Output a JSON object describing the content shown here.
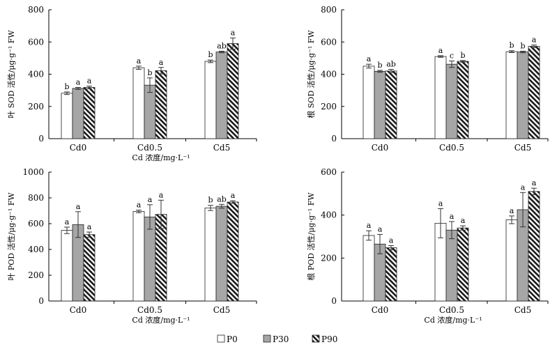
{
  "legend": {
    "items": [
      {
        "label": "P0",
        "pattern": "white"
      },
      {
        "label": "P30",
        "pattern": "gray"
      },
      {
        "label": "P90",
        "pattern": "hatch"
      }
    ]
  },
  "chart_data": [
    {
      "type": "bar",
      "title": "",
      "ylabel": "叶 SOD 活性/μg·g⁻¹ FW",
      "xlabel": "Cd 浓度/mg·L⁻¹",
      "categories": [
        "Cd0",
        "Cd0.5",
        "Cd5"
      ],
      "ylim": [
        0,
        800
      ],
      "yticks": [
        0,
        200,
        400,
        600,
        800
      ],
      "series": [
        {
          "name": "P0",
          "values": [
            282,
            440,
            480
          ],
          "errors": [
            8,
            10,
            8
          ],
          "letters": [
            "b",
            "a",
            "b"
          ]
        },
        {
          "name": "P30",
          "values": [
            312,
            332,
            538
          ],
          "errors": [
            6,
            45,
            5
          ],
          "letters": [
            "a",
            "b",
            "ab"
          ]
        },
        {
          "name": "P90",
          "values": [
            318,
            422,
            590
          ],
          "errors": [
            8,
            20,
            35
          ],
          "letters": [
            "a",
            "a",
            "a"
          ]
        }
      ]
    },
    {
      "type": "bar",
      "title": "",
      "ylabel": "根 SOD 活性/μg·g⁻¹ FW",
      "xlabel": "",
      "categories": [
        "Cd0",
        "Cd0.5",
        "Cd5"
      ],
      "ylim": [
        0,
        800
      ],
      "yticks": [
        0,
        200,
        400,
        600,
        800
      ],
      "series": [
        {
          "name": "P0",
          "values": [
            450,
            510,
            540
          ],
          "errors": [
            12,
            5,
            6
          ],
          "letters": [
            "a",
            "a",
            "b"
          ]
        },
        {
          "name": "P30",
          "values": [
            418,
            462,
            538
          ],
          "errors": [
            6,
            20,
            5
          ],
          "letters": [
            "b",
            "c",
            "b"
          ]
        },
        {
          "name": "P90",
          "values": [
            420,
            480,
            573
          ],
          "errors": [
            10,
            5,
            8
          ],
          "letters": [
            "ab",
            "b",
            "a"
          ]
        }
      ]
    },
    {
      "type": "bar",
      "title": "",
      "ylabel": "叶 POD 活性/μg·g⁻¹ FW",
      "xlabel": "Cd 浓度/mg·L⁻¹",
      "categories": [
        "Cd0",
        "Cd0.5",
        "Cd5"
      ],
      "ylim": [
        0,
        1000
      ],
      "yticks": [
        0,
        200,
        400,
        600,
        800,
        1000
      ],
      "series": [
        {
          "name": "P0",
          "values": [
            548,
            695,
            722
          ],
          "errors": [
            25,
            10,
            20
          ],
          "letters": [
            "a",
            "a",
            "b"
          ]
        },
        {
          "name": "P30",
          "values": [
            593,
            652,
            735
          ],
          "errors": [
            100,
            95,
            15
          ],
          "letters": [
            "a",
            "a",
            "ab"
          ]
        },
        {
          "name": "P90",
          "values": [
            515,
            672,
            768
          ],
          "errors": [
            20,
            110,
            10
          ],
          "letters": [
            "a",
            "a",
            "a"
          ]
        }
      ]
    },
    {
      "type": "bar",
      "title": "",
      "ylabel": "根 POD 活性/μg·g⁻¹ FW",
      "xlabel": "Cd 浓度/mg·L⁻¹",
      "categories": [
        "Cd0",
        "Cd0.5",
        "Cd5"
      ],
      "ylim": [
        0,
        600
      ],
      "yticks": [
        0,
        200,
        400,
        600
      ],
      "series": [
        {
          "name": "P0",
          "values": [
            305,
            362,
            378
          ],
          "errors": [
            22,
            68,
            18
          ],
          "letters": [
            "a",
            "a",
            "a"
          ]
        },
        {
          "name": "P30",
          "values": [
            265,
            330,
            425
          ],
          "errors": [
            45,
            40,
            80
          ],
          "letters": [
            "a",
            "a",
            "a"
          ]
        },
        {
          "name": "P90",
          "values": [
            248,
            340,
            510
          ],
          "errors": [
            10,
            10,
            15
          ],
          "letters": [
            "a",
            "a",
            "a"
          ]
        }
      ]
    }
  ]
}
